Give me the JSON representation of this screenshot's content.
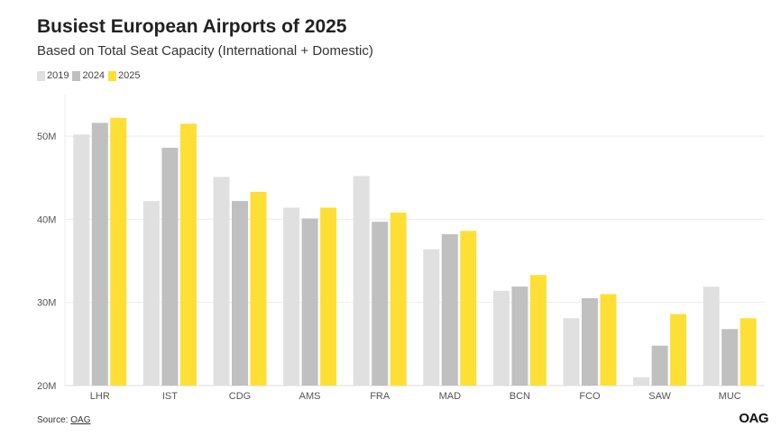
{
  "title": "Busiest European Airports of 2025",
  "subtitle": "Based on Total Seat Capacity (International + Domestic)",
  "source_label": "Source:",
  "source_link": "OAG",
  "brand_logo": "OAG",
  "colors": {
    "s2019": "#e0e0e0",
    "s2024": "#c0c0c0",
    "s2025": "#fddf35",
    "grid": "#ececec",
    "axis_text": "#555555"
  },
  "chart_data": {
    "type": "bar",
    "title": "Busiest European Airports of 2025",
    "subtitle": "Based on Total Seat Capacity (International + Domestic)",
    "categories": [
      "LHR",
      "IST",
      "CDG",
      "AMS",
      "FRA",
      "MAD",
      "BCN",
      "FCO",
      "SAW",
      "MUC"
    ],
    "series": [
      {
        "name": "2019",
        "values": [
          50.2,
          42.2,
          45.1,
          41.4,
          45.2,
          36.4,
          31.4,
          28.1,
          21.0,
          31.9
        ]
      },
      {
        "name": "2024",
        "values": [
          51.6,
          48.6,
          42.2,
          40.1,
          39.7,
          38.2,
          31.9,
          30.5,
          24.8,
          26.8
        ]
      },
      {
        "name": "2025",
        "values": [
          52.2,
          51.5,
          43.3,
          41.4,
          40.8,
          38.6,
          33.3,
          31.0,
          28.6,
          28.1
        ]
      }
    ],
    "yticks": [
      "20M",
      "30M",
      "40M",
      "50M"
    ],
    "ylim": [
      20,
      55
    ],
    "legend_position": "top-left",
    "grid": true
  }
}
